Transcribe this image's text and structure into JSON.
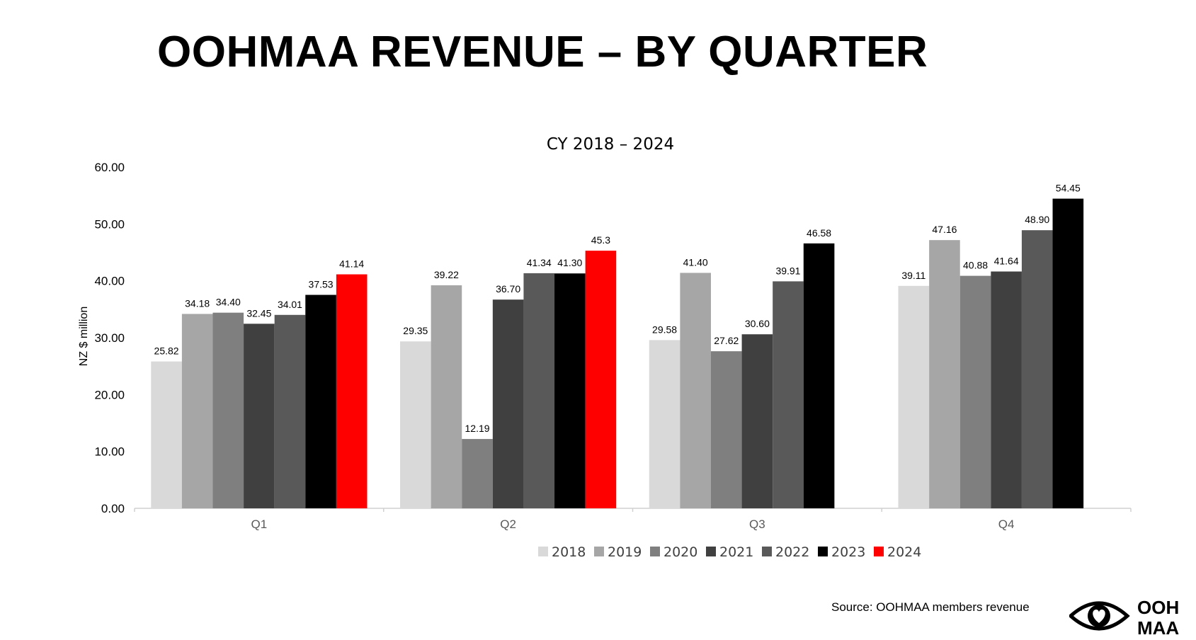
{
  "page": {
    "title": "OOHMAA REVENUE – BY QUARTER",
    "source": "Source: OOHMAA members revenue",
    "logo_line1": "OOH",
    "logo_line2": "MAA",
    "logo_icon": "eye-heart-icon"
  },
  "chart_data": {
    "type": "bar",
    "title": "CY 2018 – 2024",
    "xlabel": "",
    "ylabel": "NZ $ million",
    "ylim": [
      0,
      60
    ],
    "yticks": [
      "0.00",
      "10.00",
      "20.00",
      "30.00",
      "40.00",
      "50.00",
      "60.00"
    ],
    "grid": false,
    "legend_position": "bottom",
    "categories": [
      "Q1",
      "Q2",
      "Q3",
      "Q4"
    ],
    "series": [
      {
        "name": "2018",
        "color": "#d9d9d9",
        "values": [
          25.82,
          29.35,
          29.58,
          39.11
        ],
        "labels": [
          "25.82",
          "29.35",
          "29.58",
          "39.11"
        ]
      },
      {
        "name": "2019",
        "color": "#a6a6a6",
        "values": [
          34.18,
          39.22,
          41.4,
          47.16
        ],
        "labels": [
          "34.18",
          "39.22",
          "41.40",
          "47.16"
        ]
      },
      {
        "name": "2020",
        "color": "#7f7f7f",
        "values": [
          34.4,
          12.19,
          27.62,
          40.88
        ],
        "labels": [
          "34.40",
          "12.19",
          "27.62",
          "40.88"
        ]
      },
      {
        "name": "2021",
        "color": "#404040",
        "values": [
          32.45,
          36.7,
          30.6,
          41.64
        ],
        "labels": [
          "32.45",
          "36.70",
          "30.60",
          "41.64"
        ]
      },
      {
        "name": "2022",
        "color": "#595959",
        "values": [
          34.01,
          41.34,
          39.91,
          48.9
        ],
        "labels": [
          "34.01",
          "41.34",
          "39.91",
          "48.90"
        ]
      },
      {
        "name": "2023",
        "color": "#000000",
        "values": [
          37.53,
          41.3,
          46.58,
          54.45
        ],
        "labels": [
          "37.53",
          "41.30",
          "46.58",
          "54.45"
        ]
      },
      {
        "name": "2024",
        "color": "#ff0000",
        "values": [
          41.14,
          45.3,
          null,
          null
        ],
        "labels": [
          "41.14",
          "45.3",
          "",
          ""
        ]
      }
    ]
  }
}
